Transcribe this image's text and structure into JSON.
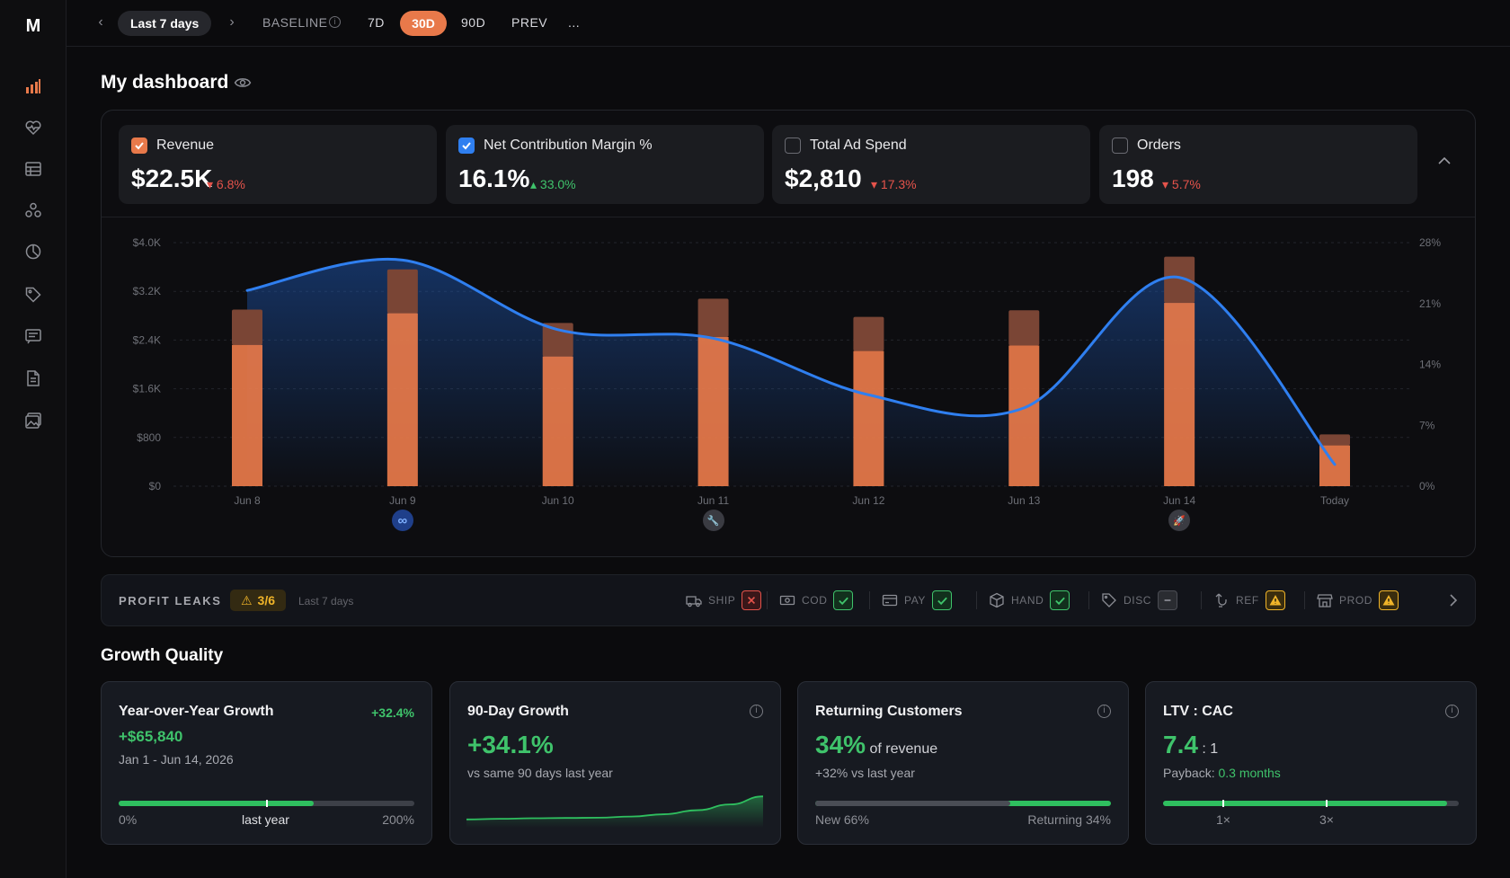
{
  "app": {
    "logo": "M"
  },
  "sidebar": {
    "items": [
      {
        "icon": "bar-chart-icon",
        "active": true
      },
      {
        "icon": "heart-pulse-icon"
      },
      {
        "icon": "table-icon"
      },
      {
        "icon": "users-icon"
      },
      {
        "icon": "pie-chart-icon"
      },
      {
        "icon": "tag-icon"
      },
      {
        "icon": "message-icon"
      },
      {
        "icon": "document-icon"
      },
      {
        "icon": "image-icon"
      }
    ]
  },
  "topbar": {
    "range": "Last 7 days",
    "baseline": "BASELINE",
    "periods": [
      "7D",
      "30D",
      "90D",
      "PREV",
      "..."
    ],
    "active_period": "30D"
  },
  "page": {
    "title": "My dashboard"
  },
  "kpis": [
    {
      "name": "Revenue",
      "value": "$22.5K",
      "delta": "6.8%",
      "direction": "down",
      "checked": true,
      "color": "#e8794a"
    },
    {
      "name": "Net Contribution Margin %",
      "value": "16.1%",
      "delta": "33.0%",
      "direction": "up",
      "checked": true,
      "color": "#2f7ff0"
    },
    {
      "name": "Total Ad Spend",
      "value": "$2,810",
      "delta": "17.3%",
      "direction": "down",
      "checked": false
    },
    {
      "name": "Orders",
      "value": "198",
      "delta": "5.7%",
      "direction": "down",
      "checked": false
    }
  ],
  "chart_data": {
    "type": "bar",
    "categories": [
      "Jun 8",
      "Jun 9",
      "Jun 10",
      "Jun 11",
      "Jun 12",
      "Jun 13",
      "Jun 14",
      "Today"
    ],
    "series": [
      {
        "name": "Revenue",
        "kind": "bar",
        "axis": "left",
        "color": "#e8794a",
        "values": [
          2320,
          2840,
          2130,
          2450,
          2220,
          2310,
          3010,
          670
        ]
      },
      {
        "kind": "bar-top",
        "axis": "left",
        "color": "#7a4535",
        "values": [
          580,
          720,
          550,
          630,
          560,
          580,
          760,
          180
        ]
      },
      {
        "name": "Net Contribution Margin %",
        "kind": "line",
        "axis": "right",
        "color": "#2f7ff0",
        "values": [
          22.5,
          26.0,
          18.0,
          17.0,
          10.5,
          9.0,
          24.0,
          2.5
        ]
      }
    ],
    "y_left": {
      "ticks": [
        "$0",
        "$800",
        "$1.6K",
        "$2.4K",
        "$3.2K",
        "$4.0K"
      ],
      "ylim": [
        0,
        4000
      ]
    },
    "y_right": {
      "ticks": [
        "0%",
        "7%",
        "14%",
        "21%",
        "28%"
      ],
      "ylim": [
        0,
        28
      ]
    },
    "annotations": [
      {
        "category": "Jun 9",
        "icon": "meta-icon"
      },
      {
        "category": "Jun 11",
        "icon": "wrench-icon"
      },
      {
        "category": "Jun 14",
        "icon": "rocket-icon"
      }
    ],
    "grid": true
  },
  "profit_leaks": {
    "title": "PROFIT LEAKS",
    "badge": "3/6",
    "subtitle": "Last 7 days",
    "items": [
      {
        "label": "SHIP",
        "status": "bad",
        "icon": "truck-icon"
      },
      {
        "label": "COD",
        "status": "ok",
        "icon": "cash-icon"
      },
      {
        "label": "PAY",
        "status": "ok",
        "icon": "card-icon"
      },
      {
        "label": "HAND",
        "status": "ok",
        "icon": "box-icon"
      },
      {
        "label": "DISC",
        "status": "neutral",
        "icon": "tag-icon"
      },
      {
        "label": "REF",
        "status": "warn",
        "icon": "refund-icon"
      },
      {
        "label": "PROD",
        "status": "warn",
        "icon": "store-icon"
      }
    ]
  },
  "growth_quality": {
    "title": "Growth Quality",
    "cards": {
      "yoy": {
        "title": "Year-over-Year Growth",
        "badge": "+32.4%",
        "amount": "+$65,840",
        "range": "Jan 1 - Jun 14, 2026",
        "bar_fill": 0.66,
        "marker": 0.5,
        "labels": [
          "0%",
          "last year",
          "200%"
        ]
      },
      "d90": {
        "title": "90-Day Growth",
        "value": "+34.1%",
        "sub": "vs same 90 days last year",
        "spark": [
          0.1,
          0.12,
          0.14,
          0.15,
          0.16,
          0.2,
          0.28,
          0.42,
          0.62,
          0.9
        ]
      },
      "returning": {
        "title": "Returning Customers",
        "value": "34%",
        "value_suffix": "of revenue",
        "sub": "+32% vs last year",
        "new_share": 0.66,
        "labels": [
          "New 66%",
          "Returning 34%"
        ]
      },
      "ltv": {
        "title": "LTV : CAC",
        "value": "7.4",
        "value_suffix": ": 1",
        "payback_label": "Payback:",
        "payback_value": "0.3 months",
        "bar_fill": 0.96,
        "ticks": [
          "1×",
          "3×"
        ]
      }
    }
  }
}
